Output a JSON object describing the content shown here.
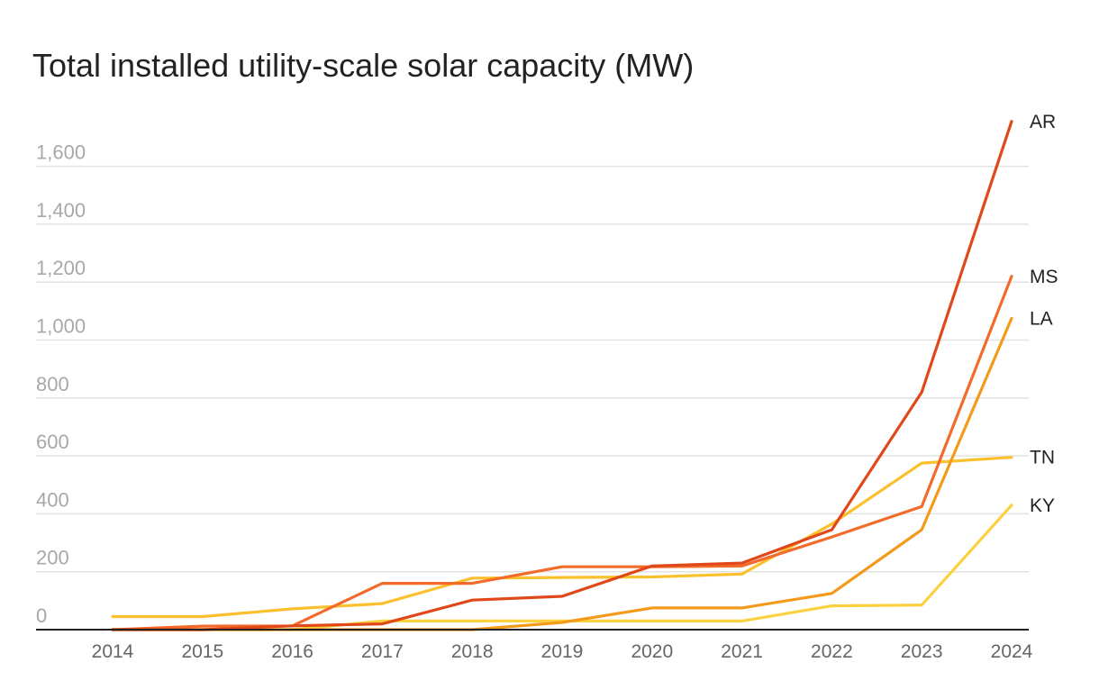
{
  "chart_data": {
    "type": "line",
    "title": "Total installed utility-scale solar capacity (MW)",
    "xlabel": "",
    "ylabel": "",
    "x": [
      "2014",
      "2015",
      "2016",
      "2017",
      "2018",
      "2019",
      "2020",
      "2021",
      "2022",
      "2023",
      "2024"
    ],
    "yticks": [
      "0",
      "200",
      "400",
      "600",
      "800",
      "1,000",
      "1,200",
      "1,400",
      "1,600"
    ],
    "ylim": [
      0,
      1750
    ],
    "grid": true,
    "legend": "direct labels at line ends (right)",
    "series": [
      {
        "name": "AR",
        "color": "#e0481a",
        "values": [
          0,
          0,
          13,
          20,
          102,
          115,
          220,
          230,
          345,
          820,
          1755
        ]
      },
      {
        "name": "MS",
        "color": "#f26b2a",
        "values": [
          0,
          12,
          13,
          160,
          160,
          217,
          217,
          220,
          320,
          425,
          1220
        ]
      },
      {
        "name": "LA",
        "color": "#f39a1b",
        "values": [
          0,
          0,
          0,
          0,
          0,
          25,
          75,
          75,
          125,
          345,
          1075
        ]
      },
      {
        "name": "TN",
        "color": "#fbc02d",
        "values": [
          45,
          45,
          72,
          90,
          178,
          180,
          182,
          192,
          365,
          575,
          595
        ]
      },
      {
        "name": "KY",
        "color": "#fcd13f",
        "values": [
          0,
          0,
          0,
          30,
          30,
          30,
          30,
          30,
          82,
          85,
          430
        ]
      }
    ]
  }
}
